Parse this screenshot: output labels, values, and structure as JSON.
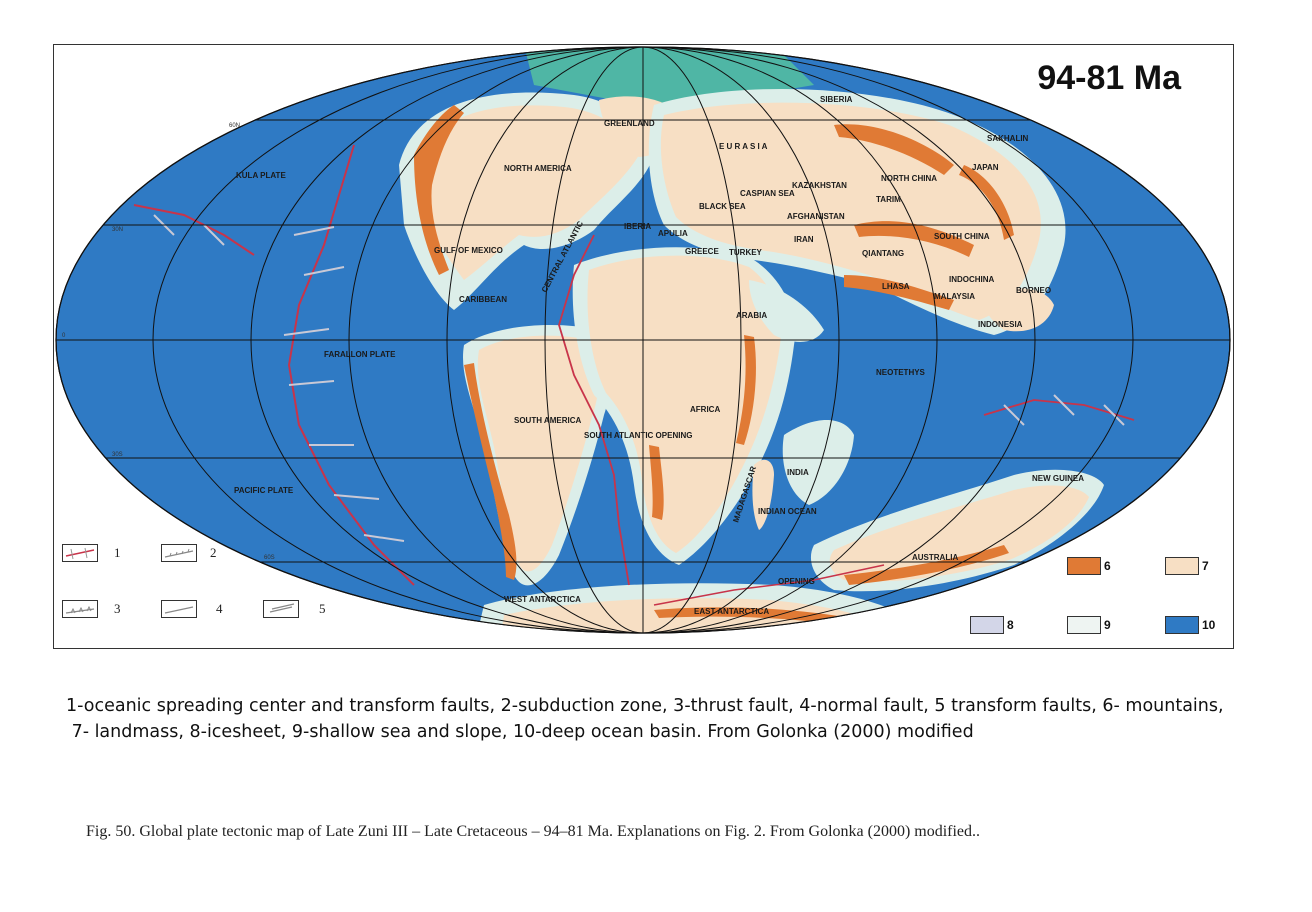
{
  "map": {
    "age": "94-81 Ma",
    "labels": {
      "siberia": "SIBERIA",
      "sakhalin": "SAKHALIN",
      "greenland": "GREENLAND",
      "eurasia": "E U R A S I A",
      "japan": "JAPAN",
      "north_china": "NORTH CHINA",
      "kazakhstan": "KAZAKHSTAN",
      "tarim": "TARIM",
      "caspian_sea": "CASPIAN SEA",
      "black_sea": "BLACK SEA",
      "afghanistan": "AFGHANISTAN",
      "north_america": "NORTH AMERICA",
      "kula_plate": "KULA PLATE",
      "gulf_of_mexico": "GULF OF MEXICO",
      "iberia": "IBERIA",
      "apulia": "APULIA",
      "greece": "GREECE",
      "turkey": "TURKEY",
      "iran": "IRAN",
      "qiantang": "QIANTANG",
      "south_china": "SOUTH CHINA",
      "indochina": "INDOCHINA",
      "lhasa": "LHASA",
      "malaysia": "MALAYSIA",
      "borneo": "BORNEO",
      "indonesia": "INDONESIA",
      "central_atlantic": "CENTRAL ATLANTIC",
      "caribbean": "CARIBBEAN",
      "arabia": "ARABIA",
      "farallon_plate": "FARALLON PLATE",
      "neotethys": "NEOTETHYS",
      "south_america": "SOUTH AMERICA",
      "south_atlantic_opening": "SOUTH ATLANTIC OPENING",
      "africa": "AFRICA",
      "india": "INDIA",
      "madagascar": "MADAGASCAR",
      "indian_ocean": "INDIAN OCEAN",
      "new_guinea": "NEW GUINEA",
      "pacific_plate": "PACIFIC PLATE",
      "australia": "AUSTRALIA",
      "opening": "OPENING",
      "west_antarctica": "WEST ANTARCTICA",
      "east_antarctica": "EAST ANTARCTICA"
    },
    "latitudes": [
      "60N",
      "30N",
      "0",
      "30S",
      "60S"
    ]
  },
  "legend": {
    "symbols": [
      "1",
      "2",
      "3",
      "4",
      "5"
    ],
    "swatches": [
      {
        "num": "6",
        "color": "#e07a35"
      },
      {
        "num": "7",
        "color": "#f7dfc4"
      },
      {
        "num": "8",
        "color": "#d3d6e8"
      },
      {
        "num": "9",
        "color": "#eef4f2"
      },
      {
        "num": "10",
        "color": "#2f7ac4"
      }
    ]
  },
  "caption_lines": [
    "1-oceanic spreading center and transform faults, 2-subduction zone, 3-thrust fault, 4-normal fault, 5 transform faults, 6- mountains,",
    " 7- landmass, 8-icesheet, 9-shallow sea and slope, 10-deep ocean basin. From Golonka (2000) modified"
  ],
  "figure_caption": "Fig. 50. Global plate tectonic map of Late Zuni III – Late Cretaceous – 94–81 Ma. Explanations on Fig. 2. From Golonka (2000) modified..",
  "colors": {
    "ocean": "#2f7ac4",
    "shelf": "#dceee9",
    "land": "#f7dfc4",
    "mountains": "#e07a35",
    "ice": "#d3d6e8",
    "ridge": "#c8344a",
    "grid": "#111111"
  }
}
